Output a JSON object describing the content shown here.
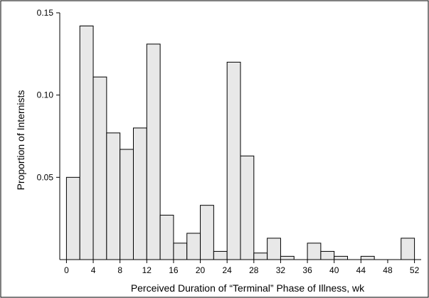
{
  "chart_data": {
    "type": "bar",
    "xlabel": "Perceived Duration of “Terminal” Phase of Illness, wk",
    "ylabel": "Proportion of Internists",
    "bin_width": 2,
    "xlim": [
      -1,
      53
    ],
    "ylim": [
      0,
      0.15
    ],
    "x_ticks": [
      0,
      4,
      8,
      12,
      16,
      20,
      24,
      28,
      32,
      36,
      40,
      44,
      48,
      52
    ],
    "y_ticks": [
      0.05,
      0.1,
      0.15
    ],
    "y_tick_labels": [
      "0.05",
      "0.10",
      "0.15"
    ],
    "bars": [
      {
        "x0": 0,
        "x1": 2,
        "value": 0.05
      },
      {
        "x0": 2,
        "x1": 4,
        "value": 0.142
      },
      {
        "x0": 4,
        "x1": 6,
        "value": 0.111
      },
      {
        "x0": 6,
        "x1": 8,
        "value": 0.077
      },
      {
        "x0": 8,
        "x1": 10,
        "value": 0.067
      },
      {
        "x0": 10,
        "x1": 12,
        "value": 0.08
      },
      {
        "x0": 12,
        "x1": 14,
        "value": 0.131
      },
      {
        "x0": 14,
        "x1": 16,
        "value": 0.027
      },
      {
        "x0": 16,
        "x1": 18,
        "value": 0.01
      },
      {
        "x0": 18,
        "x1": 20,
        "value": 0.016
      },
      {
        "x0": 20,
        "x1": 22,
        "value": 0.033
      },
      {
        "x0": 22,
        "x1": 24,
        "value": 0.005
      },
      {
        "x0": 24,
        "x1": 26,
        "value": 0.12
      },
      {
        "x0": 26,
        "x1": 28,
        "value": 0.063
      },
      {
        "x0": 28,
        "x1": 30,
        "value": 0.004
      },
      {
        "x0": 30,
        "x1": 32,
        "value": 0.013
      },
      {
        "x0": 32,
        "x1": 34,
        "value": 0.002
      },
      {
        "x0": 36,
        "x1": 38,
        "value": 0.01
      },
      {
        "x0": 38,
        "x1": 40,
        "value": 0.005
      },
      {
        "x0": 40,
        "x1": 42,
        "value": 0.002
      },
      {
        "x0": 44,
        "x1": 46,
        "value": 0.002
      },
      {
        "x0": 50,
        "x1": 52,
        "value": 0.013
      }
    ],
    "bar_fill": "#e8e8e8",
    "bar_stroke": "#000000",
    "grid": false,
    "legend": "none"
  }
}
